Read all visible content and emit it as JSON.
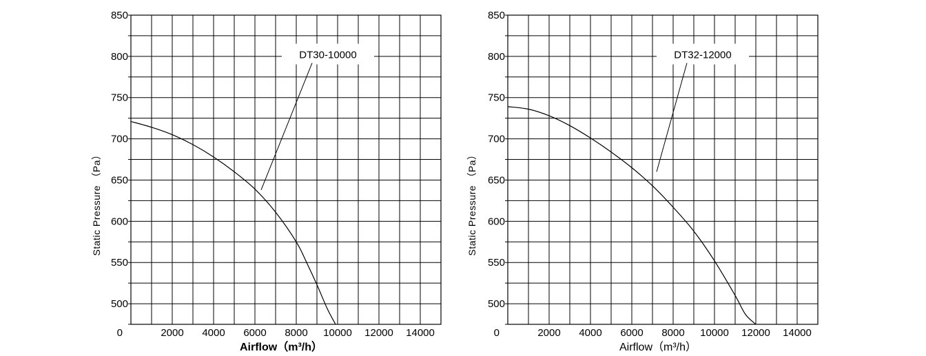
{
  "chart_data": [
    {
      "type": "line",
      "title": "",
      "xlabel": "Airflow（m³/h）",
      "xlabel_bold": true,
      "ylabel": "Static Pressure （Pa）",
      "xlim": [
        0,
        15000
      ],
      "ylim": [
        475,
        850
      ],
      "x_ticks": [
        "0",
        "2000",
        "4000",
        "6000",
        "8000",
        "10000",
        "12000",
        "14000"
      ],
      "x_tick_values": [
        0,
        2000,
        4000,
        6000,
        8000,
        10000,
        12000,
        14000
      ],
      "y_ticks": [
        "500",
        "550",
        "600",
        "650",
        "700",
        "750",
        "800",
        "850"
      ],
      "y_tick_values": [
        500,
        550,
        600,
        650,
        700,
        750,
        800,
        850
      ],
      "grid": true,
      "series": [
        {
          "name": "DT30-10000",
          "x": [
            0,
            1000,
            2000,
            3000,
            4000,
            5000,
            6000,
            7000,
            8000,
            8500,
            9000,
            9500,
            9900
          ],
          "y": [
            721,
            714,
            705,
            693,
            678,
            660,
            639,
            611,
            575,
            550,
            523,
            494,
            475
          ]
        }
      ],
      "annotation": {
        "text": "DT30-10000",
        "point": [
          6300,
          638
        ],
        "label_anchor": [
          9300,
          802
        ]
      }
    },
    {
      "type": "line",
      "title": "",
      "xlabel": "Airflow（m³/h）",
      "xlabel_bold": false,
      "ylabel": "Static Pressure （Pa）",
      "xlim": [
        0,
        15000
      ],
      "ylim": [
        475,
        850
      ],
      "x_ticks": [
        "0",
        "2000",
        "4000",
        "6000",
        "8000",
        "10000",
        "12000",
        "14000"
      ],
      "x_tick_values": [
        0,
        2000,
        4000,
        6000,
        8000,
        10000,
        12000,
        14000
      ],
      "y_ticks": [
        "500",
        "550",
        "600",
        "650",
        "700",
        "750",
        "800",
        "850"
      ],
      "y_tick_values": [
        500,
        550,
        600,
        650,
        700,
        750,
        800,
        850
      ],
      "grid": true,
      "series": [
        {
          "name": "DT32-12000",
          "x": [
            0,
            1000,
            2000,
            3000,
            4000,
            5000,
            6000,
            7000,
            8000,
            9000,
            10000,
            11000,
            11500,
            12000
          ],
          "y": [
            739,
            736,
            728,
            716,
            701,
            684,
            665,
            643,
            617,
            588,
            552,
            510,
            487,
            475
          ]
        }
      ],
      "annotation": {
        "text": "DT32-12000",
        "point": [
          7200,
          660
        ],
        "label_anchor": [
          9200,
          802
        ]
      }
    }
  ]
}
